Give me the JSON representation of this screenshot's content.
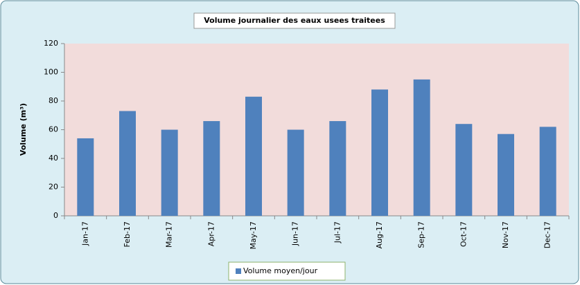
{
  "chart_data": {
    "type": "bar",
    "title": "Volume journalier des eaux usees traitees",
    "y_label": "Volume (m³)",
    "categories": [
      "Jan-17",
      "Feb-17",
      "Mar-17",
      "Apr-17",
      "May-17",
      "Jun-17",
      "Jul-17",
      "Aug-17",
      "Sep-17",
      "Oct-17",
      "Nov-17",
      "Dec-17"
    ],
    "series": [
      {
        "name": "Volume moyen/jour",
        "color": "#4f81bd",
        "values": [
          54,
          73,
          60,
          66,
          83,
          60,
          66,
          88,
          95,
          64,
          57,
          62
        ]
      }
    ],
    "ylim": [
      0,
      120
    ],
    "yticks": [
      0,
      20,
      40,
      60,
      80,
      100,
      120
    ],
    "grid": false,
    "legend": "bottom"
  }
}
